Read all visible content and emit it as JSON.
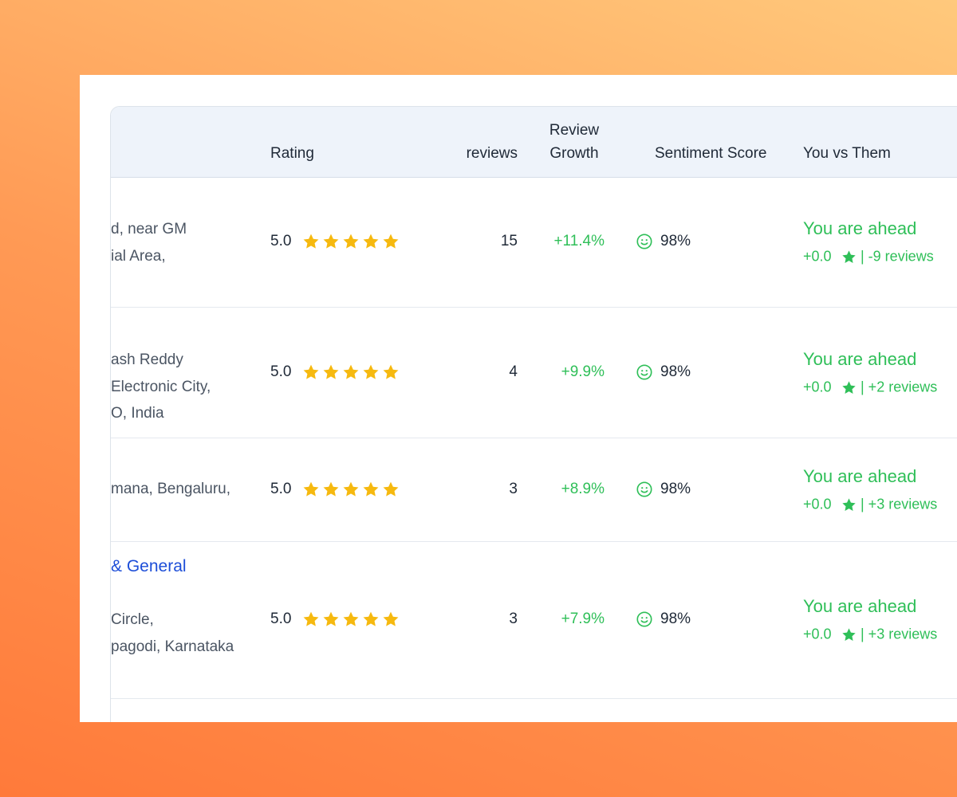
{
  "table": {
    "headers": [
      "Rating",
      "reviews",
      "Review Growth",
      "Sentiment Score",
      "You vs Them"
    ],
    "rows": [
      {
        "address_lines": [
          "d, near GM",
          "ial Area,"
        ],
        "rating": "5.0",
        "reviews": 15,
        "growth": "+11.4%",
        "sentiment": "98%",
        "status": "You are ahead",
        "rating_diff": "+0.0",
        "review_diff": "| -9 reviews"
      },
      {
        "address_lines": [
          "ash Reddy",
          "Electronic City,",
          "O, India"
        ],
        "rating": "5.0",
        "reviews": 4,
        "growth": "+9.9%",
        "sentiment": "98%",
        "status": "You are ahead",
        "rating_diff": "+0.0",
        "review_diff": "| +2 reviews"
      },
      {
        "address_lines": [
          "mana, Bengaluru,"
        ],
        "rating": "5.0",
        "reviews": 3,
        "growth": "+8.9%",
        "sentiment": "98%",
        "status": "You are ahead",
        "rating_diff": "+0.0",
        "review_diff": "| +3 reviews"
      },
      {
        "name": "& General",
        "address_lines": [
          "Circle,",
          "pagodi, Karnataka"
        ],
        "rating": "5.0",
        "reviews": 3,
        "growth": "+7.9%",
        "sentiment": "98%",
        "status": "You are ahead",
        "rating_diff": "+0.0",
        "review_diff": "| +3 reviews"
      }
    ]
  }
}
